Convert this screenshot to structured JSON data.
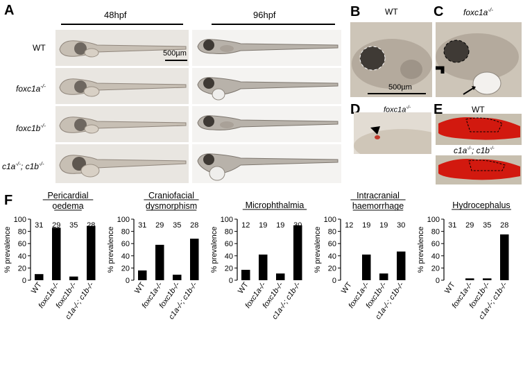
{
  "panels": {
    "A": "A",
    "B": "B",
    "C": "C",
    "D": "D",
    "E": "E",
    "F": "F"
  },
  "panel_a": {
    "time_48": "48hpf",
    "time_96": "96hpf",
    "rows": [
      "WT",
      "foxc1a",
      "foxc1b",
      "c1a"
    ],
    "row_sup": [
      "",
      "-/-",
      "-/-",
      "-/-"
    ],
    "row_tail": [
      "",
      "",
      "",
      "; c1b"
    ],
    "row_tail_sup": [
      "",
      "",
      "",
      "-/-"
    ],
    "scale_bar": "500µm"
  },
  "panel_b": {
    "label": "WT",
    "scale_bar": "500µm"
  },
  "panel_c": {
    "label": "foxc1a",
    "sup": "-/-"
  },
  "panel_d": {
    "label": "foxc1a",
    "sup": "-/-"
  },
  "panel_e": {
    "top": "WT",
    "bottom_a": "c1a",
    "bottom_b": "; c1b",
    "sup": "-/-"
  },
  "chart_data": [
    {
      "type": "bar",
      "title": [
        "Pericardial",
        "oedema"
      ],
      "ylabel": "% prevalence",
      "ylim": [
        0,
        100
      ],
      "yticks": [
        0,
        20,
        40,
        60,
        80,
        100
      ],
      "categories": [
        "WT",
        "foxc1a-/-",
        "foxc1b-/-",
        "c1a-/-; c1b-/-"
      ],
      "n": [
        "31",
        "29",
        "35",
        "28"
      ],
      "values": [
        10,
        86,
        6,
        89
      ]
    },
    {
      "type": "bar",
      "title": [
        "Craniofacial",
        "dysmorphism"
      ],
      "ylabel": "% prevalence",
      "ylim": [
        0,
        100
      ],
      "yticks": [
        0,
        20,
        40,
        60,
        80,
        100
      ],
      "categories": [
        "WT",
        "foxc1a-/-",
        "foxc1b-/-",
        "c1a-/-; c1b-/-"
      ],
      "n": [
        "31",
        "29",
        "35",
        "28"
      ],
      "values": [
        16,
        58,
        9,
        68
      ]
    },
    {
      "type": "bar",
      "title": [
        "Microphthalmia"
      ],
      "ylabel": "% prevalence",
      "ylim": [
        0,
        100
      ],
      "yticks": [
        0,
        20,
        40,
        60,
        80,
        100
      ],
      "categories": [
        "WT",
        "foxc1a-/-",
        "foxc1b-/-",
        "c1a-/-; c1b-/-"
      ],
      "n": [
        "12",
        "19",
        "19",
        "30"
      ],
      "values": [
        17,
        42,
        11,
        90
      ]
    },
    {
      "type": "bar",
      "title": [
        "Intracranial",
        "haemorrhage"
      ],
      "ylabel": "% prevalence",
      "ylim": [
        0,
        100
      ],
      "yticks": [
        0,
        20,
        40,
        60,
        80,
        100
      ],
      "categories": [
        "WT",
        "foxc1a-/-",
        "foxc1b-/-",
        "c1a-/-; c1b-/-"
      ],
      "n": [
        "12",
        "19",
        "19",
        "30"
      ],
      "values": [
        0,
        42,
        11,
        47
      ]
    },
    {
      "type": "bar",
      "title": [
        "Hydrocephalus"
      ],
      "ylabel": "% prevalence",
      "ylim": [
        0,
        100
      ],
      "yticks": [
        0,
        20,
        40,
        60,
        80,
        100
      ],
      "categories": [
        "WT",
        "foxc1a-/-",
        "foxc1b-/-",
        "c1a-/-; c1b-/-"
      ],
      "n": [
        "31",
        "29",
        "35",
        "28"
      ],
      "values": [
        0,
        3,
        3,
        75
      ]
    }
  ]
}
